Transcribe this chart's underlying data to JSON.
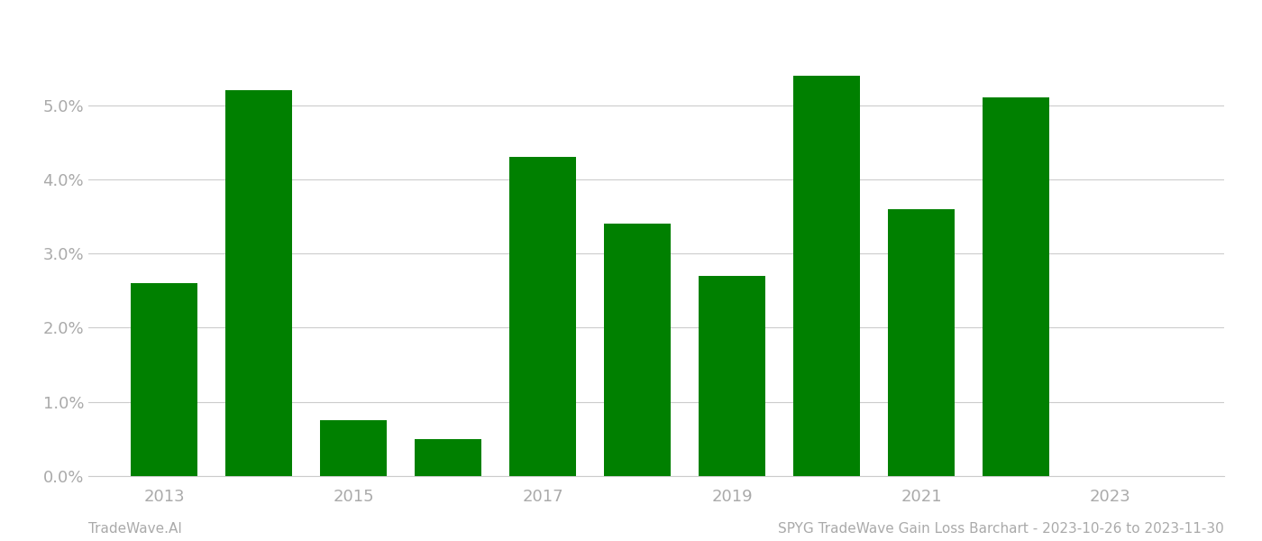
{
  "years": [
    2013,
    2014,
    2015,
    2016,
    2017,
    2018,
    2019,
    2020,
    2021,
    2022,
    2023
  ],
  "values": [
    0.026,
    0.052,
    0.0075,
    0.005,
    0.043,
    0.034,
    0.027,
    0.054,
    0.036,
    0.051,
    null
  ],
  "bar_color": "#008000",
  "ylim": [
    0,
    0.062
  ],
  "yticks": [
    0.0,
    0.01,
    0.02,
    0.03,
    0.04,
    0.05
  ],
  "xtick_labels": [
    "2013",
    "2015",
    "2017",
    "2019",
    "2021",
    "2023"
  ],
  "xtick_positions": [
    2013,
    2015,
    2017,
    2019,
    2021,
    2023
  ],
  "footer_left": "TradeWave.AI",
  "footer_right": "SPYG TradeWave Gain Loss Barchart - 2023-10-26 to 2023-11-30",
  "background_color": "#ffffff",
  "grid_color": "#cccccc",
  "tick_label_color": "#aaaaaa",
  "footer_color": "#aaaaaa",
  "bar_width": 0.7
}
